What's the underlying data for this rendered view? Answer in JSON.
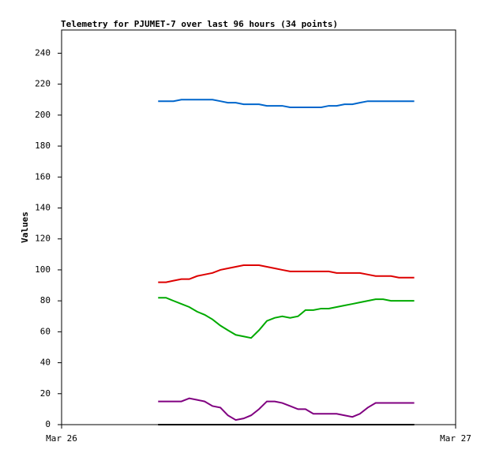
{
  "chart_data": {
    "type": "line",
    "title": "Telemetry for PJUMET-7 over last 96 hours (34 points)",
    "y_label": "Values",
    "x": [
      0.245,
      0.265,
      0.284,
      0.304,
      0.324,
      0.344,
      0.363,
      0.383,
      0.403,
      0.422,
      0.442,
      0.462,
      0.481,
      0.501,
      0.521,
      0.541,
      0.56,
      0.58,
      0.6,
      0.619,
      0.639,
      0.659,
      0.678,
      0.698,
      0.718,
      0.738,
      0.757,
      0.777,
      0.797,
      0.816,
      0.836,
      0.856,
      0.875,
      0.895
    ],
    "xlim": [
      0,
      1
    ],
    "xticks": [
      {
        "value": 0,
        "label": "Mar 26"
      },
      {
        "value": 1,
        "label": "Mar 27"
      }
    ],
    "ylim": [
      0,
      255
    ],
    "yticks": [
      0,
      20,
      40,
      60,
      80,
      100,
      120,
      140,
      160,
      180,
      200,
      220,
      240
    ],
    "grid": false,
    "series": [
      {
        "color": "#0066cc",
        "values": [
          209,
          209,
          209,
          210,
          210,
          210,
          210,
          210,
          209,
          208,
          208,
          207,
          207,
          207,
          206,
          206,
          206,
          205,
          205,
          205,
          205,
          205,
          206,
          206,
          207,
          207,
          208,
          209,
          209,
          209,
          209,
          209,
          209,
          209
        ]
      },
      {
        "color": "#dd0000",
        "values": [
          92,
          92,
          93,
          94,
          94,
          96,
          97,
          98,
          100,
          101,
          102,
          103,
          103,
          103,
          102,
          101,
          100,
          99,
          99,
          99,
          99,
          99,
          99,
          98,
          98,
          98,
          98,
          97,
          96,
          96,
          96,
          95,
          95,
          95
        ]
      },
      {
        "color": "#00aa00",
        "values": [
          82,
          82,
          80,
          78,
          76,
          73,
          71,
          68,
          64,
          61,
          58,
          57,
          56,
          61,
          67,
          69,
          70,
          69,
          70,
          74,
          74,
          75,
          75,
          76,
          77,
          78,
          79,
          80,
          81,
          81,
          80,
          80,
          80,
          80
        ]
      },
      {
        "color": "#800080",
        "values": [
          15,
          15,
          15,
          15,
          17,
          16,
          15,
          12,
          11,
          6,
          3,
          4,
          6,
          10,
          15,
          15,
          14,
          12,
          10,
          10,
          7,
          7,
          7,
          7,
          6,
          5,
          7,
          11,
          14,
          14,
          14,
          14,
          14,
          14
        ]
      },
      {
        "color": "#000000",
        "values": [
          0,
          0,
          0,
          0,
          0,
          0,
          0,
          0,
          0,
          0,
          0,
          0,
          0,
          0,
          0,
          0,
          0,
          0,
          0,
          0,
          0,
          0,
          0,
          0,
          0,
          0,
          0,
          0,
          0,
          0,
          0,
          0,
          0,
          0
        ]
      }
    ]
  }
}
